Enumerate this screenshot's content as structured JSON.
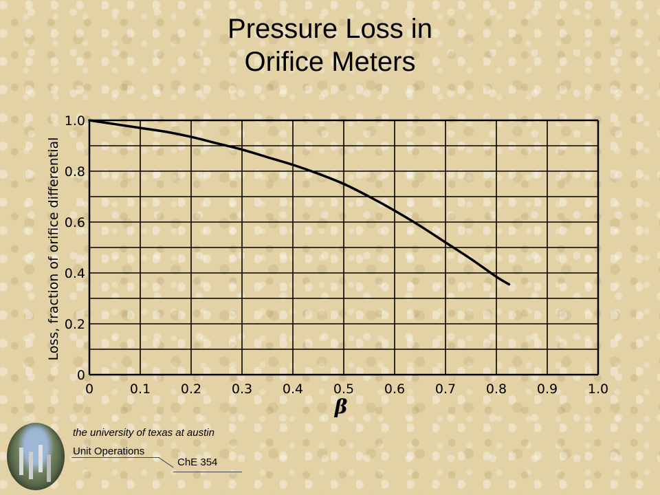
{
  "slide": {
    "title_lines": [
      "Pressure Loss in",
      "Orifice Meters"
    ]
  },
  "footer": {
    "university": "the university of texas at austin",
    "unit": "Unit Operations",
    "course": "ChE 354"
  },
  "chart_data": {
    "type": "line",
    "title": "",
    "xlabel": "β",
    "ylabel": "Loss, fraction of orifice differential",
    "xlim": [
      0,
      1.0
    ],
    "ylim": [
      0,
      1.0
    ],
    "grid": true,
    "x_ticks": [
      "0",
      "0.1",
      "0.2",
      "0.3",
      "0.4",
      "0.5",
      "0.6",
      "0.7",
      "0.8",
      "0.9",
      "1.0"
    ],
    "y_ticks": [
      "0",
      "0.2",
      "0.4",
      "0.6",
      "0.8",
      "1.0"
    ],
    "series": [
      {
        "x": [
          0,
          0.05,
          0.1,
          0.15,
          0.2,
          0.25,
          0.3,
          0.35,
          0.4,
          0.45,
          0.5,
          0.55,
          0.6,
          0.65,
          0.7,
          0.75,
          0.8,
          0.825
        ],
        "y": [
          1.0,
          0.985,
          0.97,
          0.955,
          0.935,
          0.91,
          0.885,
          0.855,
          0.825,
          0.79,
          0.75,
          0.7,
          0.645,
          0.585,
          0.52,
          0.455,
          0.385,
          0.355
        ]
      }
    ]
  }
}
